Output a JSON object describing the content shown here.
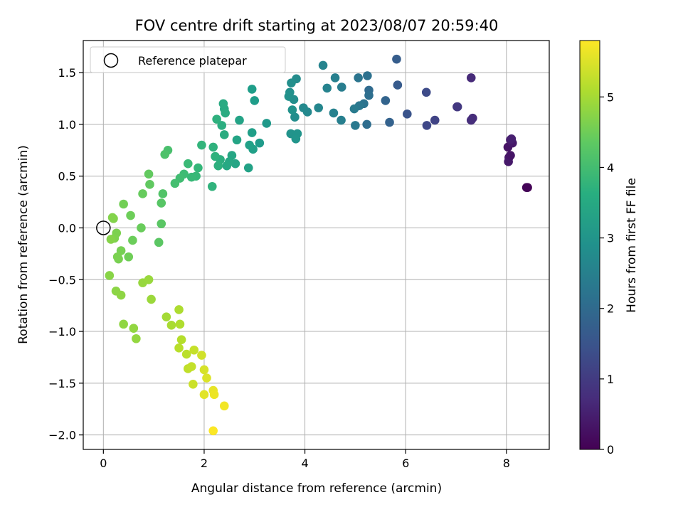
{
  "chart_data": {
    "type": "scatter",
    "title": "FOV centre drift starting at 2023/08/07 20:59:40",
    "xlabel": "Angular distance from reference (arcmin)",
    "ylabel": "Rotation from reference (arcmin)",
    "xlim": [
      -0.4,
      8.85
    ],
    "ylim": [
      -2.14,
      1.81
    ],
    "xticks": [
      0,
      2,
      4,
      6,
      8
    ],
    "yticks": [
      -2.0,
      -1.5,
      -1.0,
      -0.5,
      0.0,
      0.5,
      1.0,
      1.5
    ],
    "grid": true,
    "legend": {
      "placement": "top-left",
      "entries": [
        "Reference platepar"
      ]
    },
    "reference_point": {
      "x": 0.0,
      "y": 0.0
    },
    "colorbar": {
      "label": "Hours from first FF file",
      "colormap": "viridis",
      "range": [
        0,
        5.8
      ],
      "ticks": [
        0,
        1,
        2,
        3,
        4,
        5
      ]
    },
    "points": [
      [
        8.42,
        0.39,
        0.02
      ],
      [
        8.4,
        0.39,
        0.05
      ],
      [
        8.05,
        0.68,
        0.35
      ],
      [
        8.04,
        0.64,
        0.4
      ],
      [
        8.03,
        0.78,
        0.3
      ],
      [
        8.08,
        0.7,
        0.32
      ],
      [
        8.12,
        0.82,
        0.38
      ],
      [
        8.08,
        0.85,
        0.45
      ],
      [
        8.1,
        0.86,
        0.5
      ],
      [
        7.3,
        1.45,
        0.7
      ],
      [
        7.33,
        1.06,
        0.72
      ],
      [
        7.3,
        1.04,
        0.75
      ],
      [
        7.02,
        1.17,
        0.9
      ],
      [
        7.03,
        1.17,
        0.95
      ],
      [
        6.58,
        1.04,
        1.15
      ],
      [
        6.42,
        0.99,
        1.25
      ],
      [
        6.41,
        1.31,
        1.3
      ],
      [
        6.03,
        1.1,
        1.5
      ],
      [
        5.84,
        1.38,
        1.65
      ],
      [
        5.82,
        1.63,
        1.7
      ],
      [
        5.68,
        1.02,
        1.8
      ],
      [
        5.6,
        1.23,
        1.85
      ],
      [
        5.27,
        1.33,
        2.0
      ],
      [
        5.23,
        1.0,
        2.05
      ],
      [
        5.27,
        1.28,
        2.1
      ],
      [
        5.24,
        1.47,
        2.15
      ],
      [
        5.17,
        1.2,
        2.2
      ],
      [
        5.06,
        1.45,
        2.25
      ],
      [
        5.08,
        1.18,
        2.3
      ],
      [
        5.0,
        0.99,
        2.35
      ],
      [
        4.98,
        1.15,
        2.4
      ],
      [
        4.73,
        1.36,
        2.45
      ],
      [
        4.72,
        1.04,
        2.5
      ],
      [
        4.6,
        1.45,
        2.52
      ],
      [
        4.57,
        1.11,
        2.55
      ],
      [
        4.44,
        1.35,
        2.6
      ],
      [
        4.36,
        1.57,
        2.62
      ],
      [
        4.27,
        1.16,
        2.68
      ],
      [
        4.05,
        1.12,
        2.72
      ],
      [
        3.97,
        1.16,
        2.75
      ],
      [
        3.83,
        1.44,
        2.8
      ],
      [
        3.8,
        1.07,
        2.82
      ],
      [
        3.78,
        1.24,
        2.85
      ],
      [
        3.73,
        1.4,
        2.88
      ],
      [
        3.7,
        1.31,
        2.9
      ],
      [
        3.68,
        1.27,
        2.92
      ],
      [
        3.75,
        1.14,
        2.95
      ],
      [
        3.72,
        0.91,
        2.97
      ],
      [
        3.85,
        0.91,
        3.0
      ],
      [
        3.82,
        0.86,
        3.02
      ],
      [
        3.24,
        1.01,
        3.1
      ],
      [
        3.1,
        0.82,
        3.15
      ],
      [
        3.0,
        1.23,
        3.2
      ],
      [
        2.95,
        1.34,
        3.22
      ],
      [
        2.95,
        0.92,
        3.25
      ],
      [
        2.97,
        0.76,
        3.28
      ],
      [
        2.9,
        0.8,
        3.3
      ],
      [
        2.88,
        0.58,
        3.33
      ],
      [
        2.7,
        1.04,
        3.36
      ],
      [
        2.65,
        0.85,
        3.38
      ],
      [
        2.62,
        0.62,
        3.4
      ],
      [
        2.55,
        0.7,
        3.42
      ],
      [
        2.5,
        0.64,
        3.45
      ],
      [
        2.45,
        0.6,
        3.47
      ],
      [
        2.4,
        1.15,
        3.5
      ],
      [
        2.38,
        1.2,
        3.52
      ],
      [
        2.42,
        1.11,
        3.55
      ],
      [
        2.4,
        0.9,
        3.57
      ],
      [
        2.35,
        0.99,
        3.6
      ],
      [
        2.32,
        0.66,
        3.62
      ],
      [
        2.28,
        0.6,
        3.65
      ],
      [
        2.25,
        1.05,
        3.68
      ],
      [
        2.22,
        0.69,
        3.7
      ],
      [
        2.18,
        0.78,
        3.72
      ],
      [
        2.16,
        0.4,
        3.75
      ],
      [
        1.95,
        0.8,
        3.8
      ],
      [
        1.88,
        0.58,
        3.85
      ],
      [
        1.84,
        0.5,
        3.88
      ],
      [
        1.75,
        0.49,
        3.9
      ],
      [
        1.68,
        0.62,
        3.93
      ],
      [
        1.6,
        0.52,
        3.97
      ],
      [
        1.52,
        0.48,
        4.0
      ],
      [
        1.42,
        0.43,
        4.05
      ],
      [
        1.28,
        0.75,
        4.1
      ],
      [
        1.22,
        0.71,
        4.15
      ],
      [
        1.18,
        0.33,
        4.2
      ],
      [
        1.15,
        0.24,
        4.25
      ],
      [
        1.15,
        0.04,
        4.28
      ],
      [
        1.1,
        -0.14,
        4.3
      ],
      [
        0.92,
        0.42,
        4.35
      ],
      [
        0.9,
        0.52,
        4.38
      ],
      [
        0.78,
        0.33,
        4.42
      ],
      [
        0.75,
        0.0,
        4.45
      ],
      [
        0.58,
        -0.12,
        4.48
      ],
      [
        0.54,
        0.12,
        4.5
      ],
      [
        0.5,
        -0.28,
        4.52
      ],
      [
        0.4,
        0.23,
        4.55
      ],
      [
        0.35,
        -0.22,
        4.58
      ],
      [
        0.3,
        -0.3,
        4.6
      ],
      [
        0.28,
        -0.28,
        4.62
      ],
      [
        0.26,
        -0.05,
        4.64
      ],
      [
        0.22,
        -0.1,
        4.66
      ],
      [
        0.2,
        0.09,
        4.68
      ],
      [
        0.18,
        0.1,
        4.7
      ],
      [
        0.15,
        -0.11,
        4.72
      ],
      [
        0.12,
        -0.46,
        4.75
      ],
      [
        0.25,
        -0.61,
        4.78
      ],
      [
        0.35,
        -0.65,
        4.8
      ],
      [
        0.4,
        -0.93,
        4.82
      ],
      [
        0.6,
        -0.97,
        4.84
      ],
      [
        0.65,
        -1.07,
        4.86
      ],
      [
        0.78,
        -0.53,
        4.88
      ],
      [
        0.9,
        -0.5,
        4.9
      ],
      [
        0.95,
        -0.69,
        4.92
      ],
      [
        1.25,
        -0.86,
        5.0
      ],
      [
        1.35,
        -0.94,
        5.05
      ],
      [
        1.5,
        -0.79,
        5.08
      ],
      [
        1.52,
        -0.93,
        5.1
      ],
      [
        1.55,
        -1.08,
        5.15
      ],
      [
        1.5,
        -1.16,
        5.18
      ],
      [
        1.65,
        -1.22,
        5.2
      ],
      [
        1.68,
        -1.36,
        5.25
      ],
      [
        1.75,
        -1.34,
        5.28
      ],
      [
        1.8,
        -1.18,
        5.3
      ],
      [
        1.78,
        -1.51,
        5.35
      ],
      [
        1.95,
        -1.23,
        5.4
      ],
      [
        2.0,
        -1.37,
        5.45
      ],
      [
        2.05,
        -1.45,
        5.5
      ],
      [
        2.0,
        -1.61,
        5.55
      ],
      [
        2.18,
        -1.57,
        5.6
      ],
      [
        2.2,
        -1.61,
        5.65
      ],
      [
        2.4,
        -1.72,
        5.7
      ],
      [
        2.18,
        -1.96,
        5.78
      ]
    ]
  }
}
